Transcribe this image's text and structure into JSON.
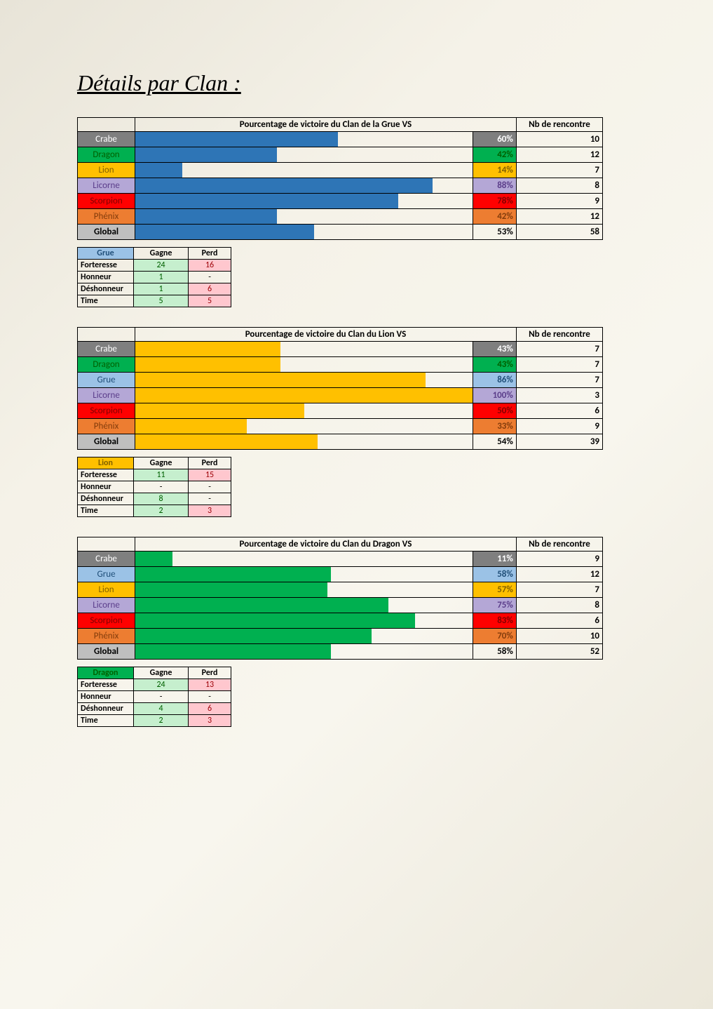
{
  "title": "Détails par Clan :",
  "clanColors": {
    "Crabe": {
      "bg": "#7f7f7f",
      "fg": "#ffffff"
    },
    "Dragon": {
      "bg": "#00b050",
      "fg": "#006100"
    },
    "Grue": {
      "bg": "#9bc2e6",
      "fg": "#1f4e78"
    },
    "Lion": {
      "bg": "#ffc000",
      "fg": "#806000"
    },
    "Licorne": {
      "bg": "#b4a7d6",
      "fg": "#5b3d8a"
    },
    "Scorpion": {
      "bg": "#ff0000",
      "fg": "#7f0000"
    },
    "Phénix": {
      "bg": "#ed7d31",
      "fg": "#833c0c"
    }
  },
  "sections": [
    {
      "clan": "Grue",
      "barColor": "#2e75b6",
      "headerTitle": "Pourcentage de victoire du Clan de la Grue VS",
      "headerNb": "Nb de rencontre",
      "rows": [
        {
          "name": "Crabe",
          "pct": 60,
          "nb": 10
        },
        {
          "name": "Dragon",
          "pct": 42,
          "nb": 12
        },
        {
          "name": "Lion",
          "pct": 14,
          "nb": 7
        },
        {
          "name": "Licorne",
          "pct": 88,
          "nb": 8
        },
        {
          "name": "Scorpion",
          "pct": 78,
          "nb": 9
        },
        {
          "name": "Phénix",
          "pct": 42,
          "nb": 12
        }
      ],
      "global": {
        "label": "Global",
        "pct": 53,
        "nb": 58
      },
      "gp": {
        "clanHeader": "Grue",
        "headerGagne": "Gagne",
        "headerPerd": "Perd",
        "rows": [
          {
            "label": "Forteresse",
            "g": "24",
            "p": "16"
          },
          {
            "label": "Honneur",
            "g": "1",
            "p": "-"
          },
          {
            "label": "Déshonneur",
            "g": "1",
            "p": "6"
          },
          {
            "label": "Time",
            "g": "5",
            "p": "5"
          }
        ]
      }
    },
    {
      "clan": "Lion",
      "barColor": "#ffc000",
      "headerTitle": "Pourcentage de victoire du Clan du Lion VS",
      "headerNb": "Nb de rencontre",
      "rows": [
        {
          "name": "Crabe",
          "pct": 43,
          "nb": 7
        },
        {
          "name": "Dragon",
          "pct": 43,
          "nb": 7
        },
        {
          "name": "Grue",
          "pct": 86,
          "nb": 7
        },
        {
          "name": "Licorne",
          "pct": 100,
          "nb": 3
        },
        {
          "name": "Scorpion",
          "pct": 50,
          "nb": 6
        },
        {
          "name": "Phénix",
          "pct": 33,
          "nb": 9
        }
      ],
      "global": {
        "label": "Global",
        "pct": 54,
        "nb": 39
      },
      "gp": {
        "clanHeader": "Lion",
        "headerGagne": "Gagne",
        "headerPerd": "Perd",
        "rows": [
          {
            "label": "Forteresse",
            "g": "11",
            "p": "15"
          },
          {
            "label": "Honneur",
            "g": "-",
            "p": "-"
          },
          {
            "label": "Déshonneur",
            "g": "8",
            "p": "-"
          },
          {
            "label": "Time",
            "g": "2",
            "p": "3"
          }
        ]
      }
    },
    {
      "clan": "Dragon",
      "barColor": "#00b050",
      "headerTitle": "Pourcentage de victoire du Clan du Dragon VS",
      "headerNb": "Nb de rencontre",
      "rows": [
        {
          "name": "Crabe",
          "pct": 11,
          "nb": 9
        },
        {
          "name": "Grue",
          "pct": 58,
          "nb": 12
        },
        {
          "name": "Lion",
          "pct": 57,
          "nb": 7
        },
        {
          "name": "Licorne",
          "pct": 75,
          "nb": 8
        },
        {
          "name": "Scorpion",
          "pct": 83,
          "nb": 6
        },
        {
          "name": "Phénix",
          "pct": 70,
          "nb": 10
        }
      ],
      "global": {
        "label": "Global",
        "pct": 58,
        "nb": 52
      },
      "gp": {
        "clanHeader": "Dragon",
        "headerGagne": "Gagne",
        "headerPerd": "Perd",
        "rows": [
          {
            "label": "Forteresse",
            "g": "24",
            "p": "13"
          },
          {
            "label": "Honneur",
            "g": "-",
            "p": "-"
          },
          {
            "label": "Déshonneur",
            "g": "4",
            "p": "6"
          },
          {
            "label": "Time",
            "g": "2",
            "p": "3"
          }
        ]
      }
    }
  ]
}
